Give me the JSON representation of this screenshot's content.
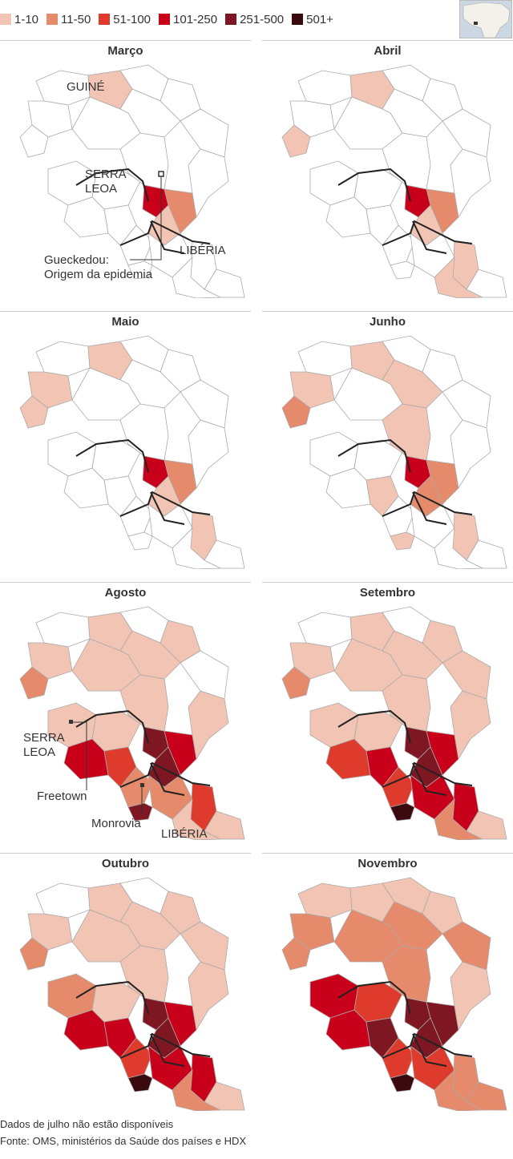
{
  "legend": [
    {
      "label": "1-10",
      "color": "#f2c4b3"
    },
    {
      "label": "11-50",
      "color": "#e58a6a"
    },
    {
      "label": "51-100",
      "color": "#de3b2c"
    },
    {
      "label": "101-250",
      "color": "#c8001a"
    },
    {
      "label": "251-500",
      "color": "#7e1722"
    },
    {
      "label": "501+",
      "color": "#3b0a0e"
    }
  ],
  "panels": [
    {
      "title": "Março"
    },
    {
      "title": "Abril"
    },
    {
      "title": "Maio"
    },
    {
      "title": "Junho"
    },
    {
      "title": "Agosto"
    },
    {
      "title": "Setembro"
    },
    {
      "title": "Outubro"
    },
    {
      "title": "Novembro"
    }
  ],
  "annotations": {
    "march_guine": "GUINÉ",
    "march_serra": "SERRA",
    "march_leoa": "LEOA",
    "march_liberia": "LIBÉRIA",
    "march_origin_1": "Gueckedou:",
    "march_origin_2": "Origem da epidemia",
    "aug_serra": "SERRA",
    "aug_leoa": "LEOA",
    "aug_freetown": "Freetown",
    "aug_monrovia": "Monrovia",
    "aug_liberia": "LIBÉRIA"
  },
  "footer": {
    "note": "Dados de julho não estão disponíveis",
    "source": "Fonte: OMS, ministérios da Saúde dos países e HDX"
  }
}
